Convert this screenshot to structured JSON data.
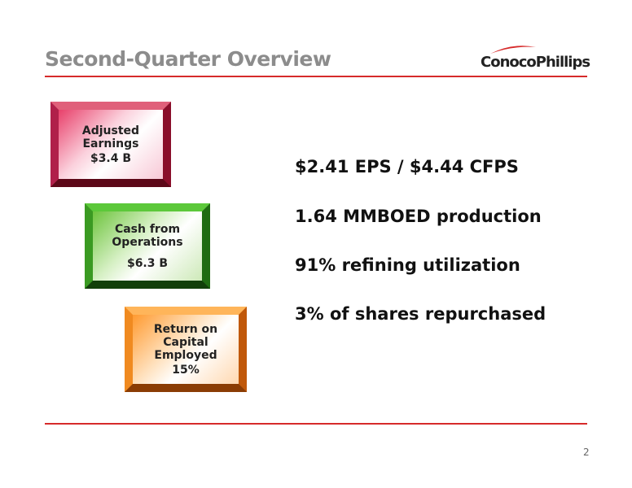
{
  "header": {
    "title": "Second-Quarter Overview",
    "logo": "ConocoPhillips"
  },
  "boxes": [
    {
      "label": "Adjusted Earnings",
      "value": "$3.4 B"
    },
    {
      "label": "Cash from Operations",
      "value": "$6.3 B"
    },
    {
      "label": "Return on Capital Employed",
      "value": "15%"
    }
  ],
  "highlights": [
    "$2.41 EPS / $4.44 CFPS",
    "1.64 MMBOED production",
    "91% refining utilization",
    "3% of shares repurchased"
  ],
  "footer": {
    "page_number": "2"
  }
}
